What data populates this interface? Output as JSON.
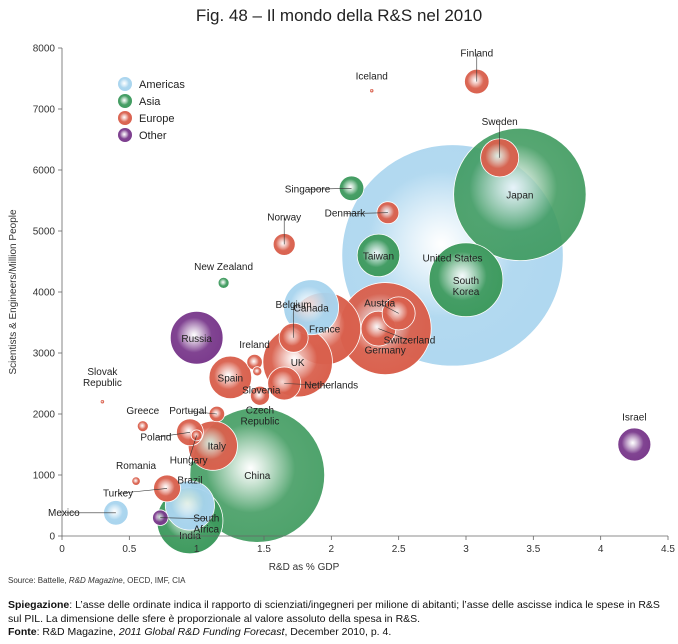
{
  "title": "Fig. 48 – Il mondo della R&S nel 2010",
  "source_line": {
    "prefix": "Source: Battelle, ",
    "magazine": "R&D Magazine",
    "suffix": ", OECD, IMF, CIA"
  },
  "explanation": {
    "label": "Spiegazione",
    "text": ": L’asse delle ordinate indica il rapporto di scienziati/ingegneri per milione di abitanti; l’asse delle ascisse indica le spese in R&S sul PIL. La dimensione delle sfere è proporzionale al valore assoluto della spesa in R&S."
  },
  "footer_source": {
    "label": "Fonte",
    "prefix": ": R&D Magazine, ",
    "italic": "2011 Global R&D Funding Forecast",
    "suffix": ", December 2010, p. 4."
  },
  "colors": {
    "Americas": "#a8d4ee",
    "Asia": "#3e9a5e",
    "Europe": "#d9604d",
    "Other": "#7a3a8c"
  },
  "chart_data": {
    "type": "scatter",
    "subtype": "bubble",
    "xlabel": "R&D as % GDP",
    "ylabel": "Scientists & Engineers/Million People",
    "xlim": [
      0,
      4.5
    ],
    "ylim": [
      0,
      8000
    ],
    "xticks": [
      0,
      0.5,
      1,
      1.5,
      2,
      2.5,
      3,
      3.5,
      4,
      4.5
    ],
    "xtick_labels": [
      "0",
      "0.5",
      "1",
      "1.5",
      "2",
      "2.5",
      "3",
      "3.5",
      "4",
      "4.5"
    ],
    "yticks": [
      0,
      1000,
      2000,
      3000,
      4000,
      5000,
      6000,
      7000,
      8000
    ],
    "ytick_labels": [
      "0",
      "1000",
      "2000",
      "3000",
      "4000",
      "5000",
      "6000",
      "7000",
      "8000"
    ],
    "grid": false,
    "legend": {
      "placement": "top-left",
      "entries": [
        "Americas",
        "Asia",
        "Europe",
        "Other"
      ]
    },
    "points": [
      {
        "name": "United States",
        "group": "Americas",
        "x": 2.9,
        "y": 4600,
        "size": 405
      },
      {
        "name": "Japan",
        "group": "Asia",
        "x": 3.4,
        "y": 5600,
        "size": 145
      },
      {
        "name": "China",
        "group": "Asia",
        "x": 1.45,
        "y": 1000,
        "size": 150
      },
      {
        "name": "Germany",
        "group": "Europe",
        "x": 2.4,
        "y": 3400,
        "size": 70
      },
      {
        "name": "South Korea",
        "group": "Asia",
        "x": 3.0,
        "y": 4200,
        "size": 45
      },
      {
        "name": "France",
        "group": "Europe",
        "x": 1.95,
        "y": 3400,
        "size": 43
      },
      {
        "name": "UK",
        "group": "Europe",
        "x": 1.75,
        "y": 2850,
        "size": 40
      },
      {
        "name": "India",
        "group": "Asia",
        "x": 0.95,
        "y": 250,
        "size": 36
      },
      {
        "name": "Canada",
        "group": "Americas",
        "x": 1.85,
        "y": 3750,
        "size": 25
      },
      {
        "name": "Russia",
        "group": "Other",
        "x": 1.0,
        "y": 3250,
        "size": 23
      },
      {
        "name": "Brazil",
        "group": "Americas",
        "x": 0.95,
        "y": 500,
        "size": 20
      },
      {
        "name": "Italy",
        "group": "Europe",
        "x": 1.12,
        "y": 1480,
        "size": 20
      },
      {
        "name": "Spain",
        "group": "Europe",
        "x": 1.25,
        "y": 2600,
        "size": 15
      },
      {
        "name": "Taiwan",
        "group": "Asia",
        "x": 2.35,
        "y": 4600,
        "size": 15
      },
      {
        "name": "Sweden",
        "group": "Europe",
        "x": 3.25,
        "y": 6200,
        "size": 12
      },
      {
        "name": "Switzerland",
        "group": "Europe",
        "x": 2.35,
        "y": 3400,
        "size": 10
      },
      {
        "name": "Austria",
        "group": "Europe",
        "x": 2.5,
        "y": 3650,
        "size": 9
      },
      {
        "name": "Netherlands",
        "group": "Europe",
        "x": 1.65,
        "y": 2500,
        "size": 9
      },
      {
        "name": "Belgium",
        "group": "Europe",
        "x": 1.72,
        "y": 3250,
        "size": 7
      },
      {
        "name": "Israel",
        "group": "Other",
        "x": 4.25,
        "y": 1500,
        "size": 9
      },
      {
        "name": "Finland",
        "group": "Europe",
        "x": 3.08,
        "y": 7450,
        "size": 5
      },
      {
        "name": "Norway",
        "group": "Europe",
        "x": 1.65,
        "y": 4780,
        "size": 4
      },
      {
        "name": "Singapore",
        "group": "Asia",
        "x": 2.15,
        "y": 5700,
        "size": 5
      },
      {
        "name": "Denmark",
        "group": "Europe",
        "x": 2.42,
        "y": 5300,
        "size": 4
      },
      {
        "name": "Turkey",
        "group": "Europe",
        "x": 0.78,
        "y": 780,
        "size": 6
      },
      {
        "name": "Mexico",
        "group": "Americas",
        "x": 0.4,
        "y": 380,
        "size": 5
      },
      {
        "name": "Poland",
        "group": "Europe",
        "x": 0.95,
        "y": 1700,
        "size": 6
      },
      {
        "name": "Czech Republic",
        "group": "Europe",
        "x": 1.47,
        "y": 2300,
        "size": 3
      },
      {
        "name": "Portugal",
        "group": "Europe",
        "x": 1.15,
        "y": 2000,
        "size": 2
      },
      {
        "name": "Ireland",
        "group": "Europe",
        "x": 1.43,
        "y": 2850,
        "size": 2
      },
      {
        "name": "South Africa",
        "group": "Other",
        "x": 0.73,
        "y": 300,
        "size": 2
      },
      {
        "name": "New Zealand",
        "group": "Asia",
        "x": 1.2,
        "y": 4150,
        "size": 1
      },
      {
        "name": "Hungary",
        "group": "Europe",
        "x": 1.0,
        "y": 1650,
        "size": 1
      },
      {
        "name": "Greece",
        "group": "Europe",
        "x": 0.6,
        "y": 1800,
        "size": 1
      },
      {
        "name": "Slovenia",
        "group": "Europe",
        "x": 1.45,
        "y": 2700,
        "size": 0.7
      },
      {
        "name": "Romania",
        "group": "Europe",
        "x": 0.55,
        "y": 900,
        "size": 0.6
      },
      {
        "name": "Iceland",
        "group": "Europe",
        "x": 2.3,
        "y": 7300,
        "size": 0.1
      },
      {
        "name": "Slovak Republic",
        "group": "Europe",
        "x": 0.3,
        "y": 2200,
        "size": 0.1
      }
    ]
  }
}
